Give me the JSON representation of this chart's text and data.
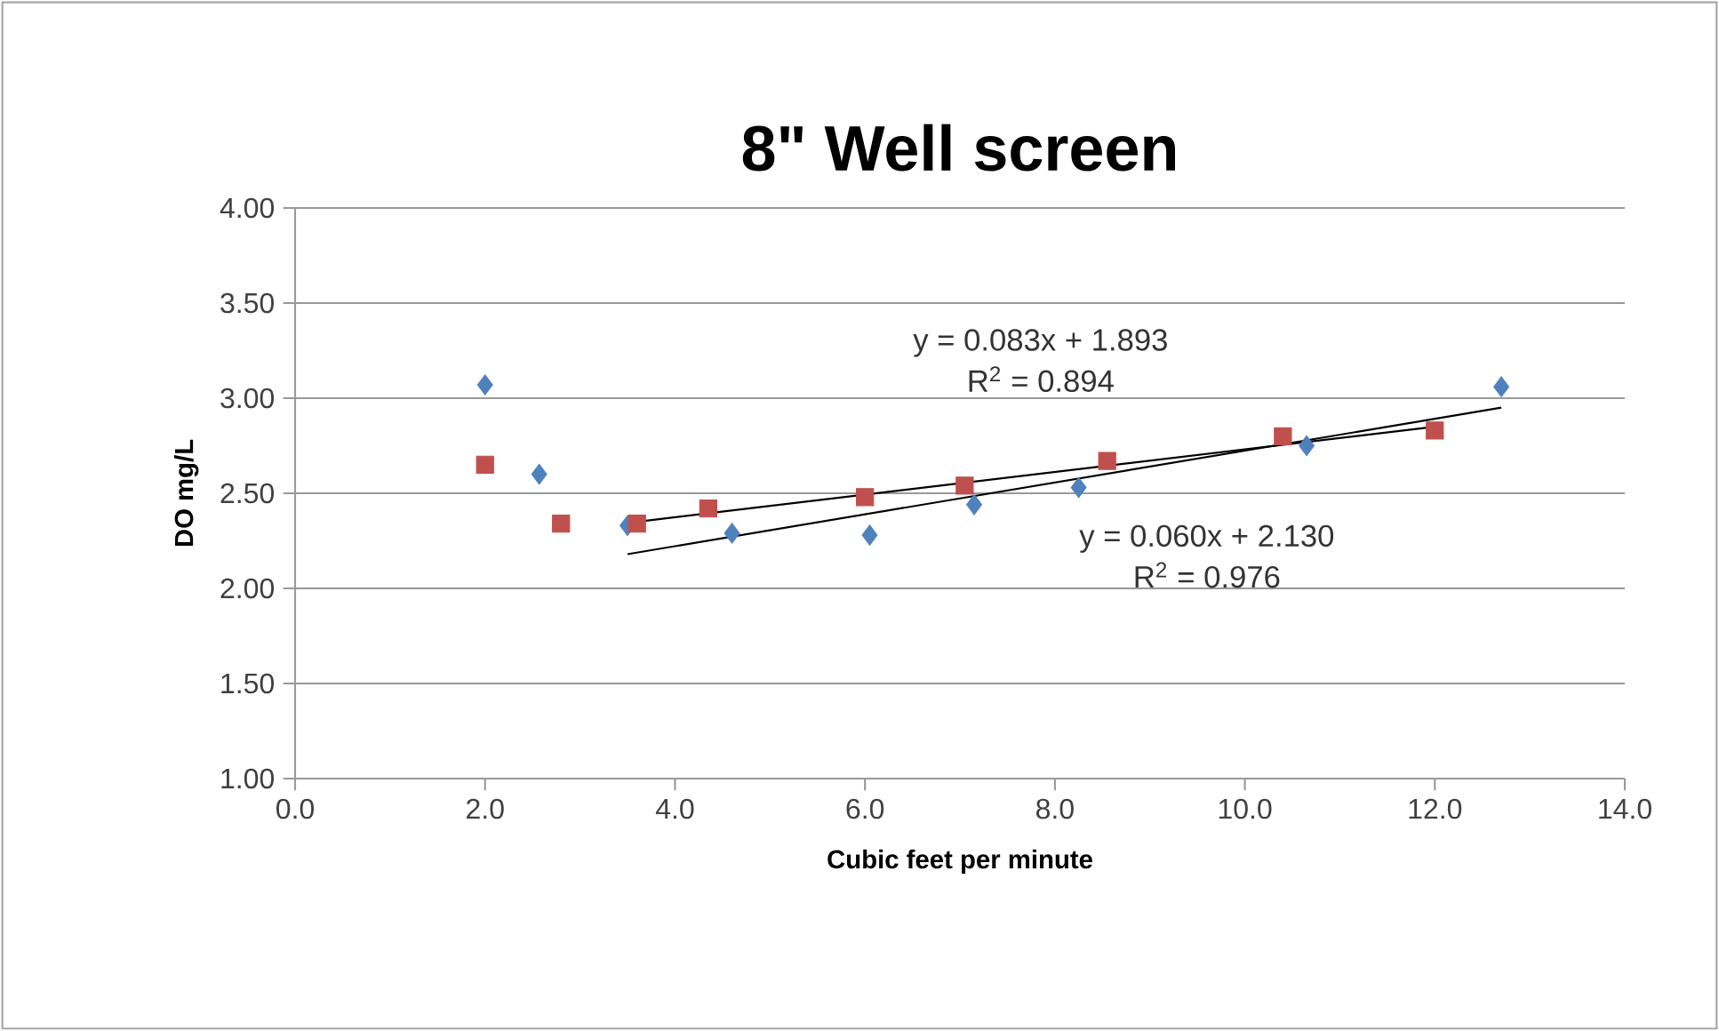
{
  "chart_data": {
    "type": "scatter",
    "title": "8\" Well screen",
    "xlabel": "Cubic feet per minute",
    "ylabel": "DO mg/L",
    "xlim": [
      0,
      14
    ],
    "xticks": [
      {
        "value": 0,
        "label": "0.0"
      },
      {
        "value": 2,
        "label": "2.0"
      },
      {
        "value": 4,
        "label": "4.0"
      },
      {
        "value": 6,
        "label": "6.0"
      },
      {
        "value": 8,
        "label": "8.0"
      },
      {
        "value": 10,
        "label": "10.0"
      },
      {
        "value": 12,
        "label": "12.0"
      },
      {
        "value": 14,
        "label": "14.0"
      }
    ],
    "ylim": [
      1,
      4
    ],
    "yticks": [
      {
        "value": 1,
        "label": "1.00"
      },
      {
        "value": 1.5,
        "label": "1.50"
      },
      {
        "value": 2,
        "label": "2.00"
      },
      {
        "value": 2.5,
        "label": "2.50"
      },
      {
        "value": 3,
        "label": "3.00"
      },
      {
        "value": 3.5,
        "label": "3.50"
      },
      {
        "value": 4,
        "label": "4.00"
      }
    ],
    "grid": "y",
    "series": [
      {
        "marker": "diamond",
        "color": "#4f81bd",
        "x": [
          2.0,
          2.57,
          3.5,
          4.6,
          6.05,
          7.15,
          8.25,
          10.65,
          12.7
        ],
        "values": [
          3.07,
          2.6,
          2.33,
          2.29,
          2.28,
          2.44,
          2.53,
          2.75,
          3.06
        ]
      },
      {
        "marker": "square",
        "color": "#c0504d",
        "x": [
          2.0,
          2.8,
          3.6,
          4.35,
          6.0,
          7.05,
          8.55,
          10.4,
          12.0
        ],
        "values": [
          2.65,
          2.34,
          2.34,
          2.42,
          2.48,
          2.54,
          2.67,
          2.8,
          2.83
        ]
      },
      {
        "type": "line",
        "marker": "none",
        "color": "#000000",
        "x": [
          3.5,
          12.7
        ],
        "values": [
          2.18,
          2.95
        ]
      },
      {
        "type": "line",
        "marker": "none",
        "color": "#000000",
        "x": [
          3.6,
          12.0
        ],
        "values": [
          2.35,
          2.85
        ]
      }
    ],
    "annotations": [
      "y = 0.083x + 1.893",
      "R$^{2}$ = 0.894",
      "y = 0.060x + 2.130",
      "R$^{2}$ = 0.976"
    ]
  }
}
